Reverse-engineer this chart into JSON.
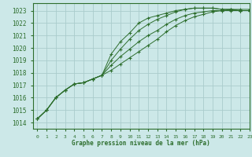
{
  "bg_color": "#cce8e8",
  "grid_color": "#aacccc",
  "line_color": "#2d6e2d",
  "text_color": "#2d6e2d",
  "xlabel": "Graphe pression niveau de la mer (hPa)",
  "xlim": [
    -0.5,
    23
  ],
  "ylim": [
    1013.5,
    1023.6
  ],
  "yticks": [
    1014,
    1015,
    1016,
    1017,
    1018,
    1019,
    1020,
    1021,
    1022,
    1023
  ],
  "xticks": [
    0,
    1,
    2,
    3,
    4,
    5,
    6,
    7,
    8,
    9,
    10,
    11,
    12,
    13,
    14,
    15,
    16,
    17,
    18,
    19,
    20,
    21,
    22,
    23
  ],
  "series": [
    [
      1014.3,
      1015.0,
      1016.0,
      1016.6,
      1017.1,
      1017.2,
      1017.5,
      1017.8,
      1018.2,
      1018.7,
      1019.2,
      1019.7,
      1020.2,
      1020.7,
      1021.3,
      1021.8,
      1022.2,
      1022.5,
      1022.7,
      1022.9,
      1023.0,
      1023.1,
      1023.1,
      1023.1
    ],
    [
      1014.3,
      1015.0,
      1016.0,
      1016.6,
      1017.1,
      1017.2,
      1017.5,
      1017.8,
      1018.6,
      1019.3,
      1019.9,
      1020.5,
      1021.0,
      1021.4,
      1021.9,
      1022.3,
      1022.6,
      1022.8,
      1022.9,
      1023.0,
      1023.0,
      1023.0,
      1023.0,
      1023.0
    ],
    [
      1014.3,
      1015.0,
      1016.0,
      1016.6,
      1017.1,
      1017.2,
      1017.5,
      1017.8,
      1019.0,
      1019.9,
      1020.7,
      1021.4,
      1021.9,
      1022.3,
      1022.6,
      1022.9,
      1023.1,
      1023.2,
      1023.2,
      1023.2,
      1023.1,
      1023.1,
      1023.0,
      1023.0
    ],
    [
      1014.3,
      1015.0,
      1016.0,
      1016.6,
      1017.1,
      1017.2,
      1017.5,
      1017.8,
      1019.5,
      1020.5,
      1021.2,
      1022.0,
      1022.4,
      1022.6,
      1022.8,
      1023.0,
      1023.1,
      1023.2,
      1023.2,
      1023.2,
      1023.1,
      1023.1,
      1023.0,
      1023.0
    ]
  ]
}
